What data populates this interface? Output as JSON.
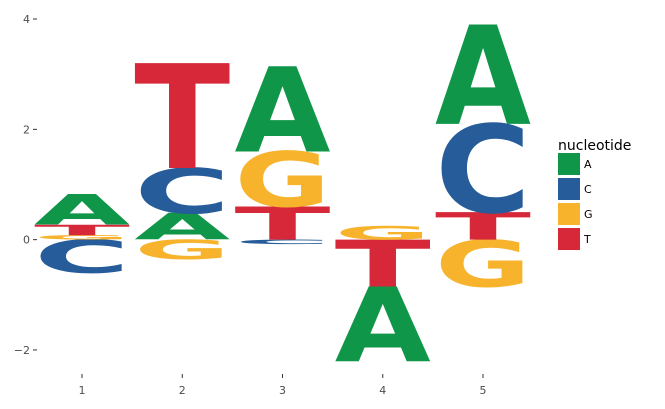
{
  "chart_data": {
    "type": "sequence-logo",
    "title": "",
    "xlabel": "",
    "ylabel": "",
    "ylim": [
      -2.4,
      4.2
    ],
    "y_ticks": [
      -2,
      0,
      2,
      4
    ],
    "y_tick_labels": [
      "−2",
      "0",
      "2",
      "4"
    ],
    "x_ticks": [
      "1",
      "2",
      "3",
      "4",
      "5"
    ],
    "grid": false,
    "legend": {
      "title": "nucleotide",
      "placement": "right",
      "entries": [
        {
          "key": "A",
          "label": "A",
          "color": "#109648"
        },
        {
          "key": "C",
          "label": "C",
          "color": "#255C99"
        },
        {
          "key": "G",
          "label": "G",
          "color": "#F7B32B"
        },
        {
          "key": "T",
          "label": "T",
          "color": "#D62839"
        }
      ]
    },
    "positions": [
      {
        "x": "1",
        "letters": [
          {
            "letter": "C",
            "y0": -0.6,
            "y1": 0.0
          },
          {
            "letter": "G",
            "y0": 0.0,
            "y1": 0.08
          },
          {
            "letter": "T",
            "y0": 0.08,
            "y1": 0.27
          },
          {
            "letter": "A",
            "y0": 0.27,
            "y1": 0.82
          }
        ]
      },
      {
        "x": "2",
        "letters": [
          {
            "letter": "G",
            "y0": -0.35,
            "y1": 0.0
          },
          {
            "letter": "A",
            "y0": 0.0,
            "y1": 0.48
          },
          {
            "letter": "C",
            "y0": 0.48,
            "y1": 1.3
          },
          {
            "letter": "T",
            "y0": 1.3,
            "y1": 3.2
          }
        ]
      },
      {
        "x": "3",
        "letters": [
          {
            "letter": "C",
            "y0": -0.08,
            "y1": 0.0
          },
          {
            "letter": "T",
            "y0": 0.0,
            "y1": 0.6
          },
          {
            "letter": "G",
            "y0": 0.6,
            "y1": 1.6
          },
          {
            "letter": "A",
            "y0": 1.6,
            "y1": 3.15
          }
        ]
      },
      {
        "x": "4",
        "letters": [
          {
            "letter": "A",
            "y0": -2.2,
            "y1": -0.85
          },
          {
            "letter": "T",
            "y0": -0.85,
            "y1": 0.0
          },
          {
            "letter": "G",
            "y0": 0.0,
            "y1": 0.25
          }
        ]
      },
      {
        "x": "5",
        "letters": [
          {
            "letter": "G",
            "y0": -0.85,
            "y1": 0.0
          },
          {
            "letter": "T",
            "y0": 0.0,
            "y1": 0.5
          },
          {
            "letter": "C",
            "y0": 0.5,
            "y1": 2.1
          },
          {
            "letter": "A",
            "y0": 2.1,
            "y1": 3.9
          }
        ]
      }
    ]
  }
}
